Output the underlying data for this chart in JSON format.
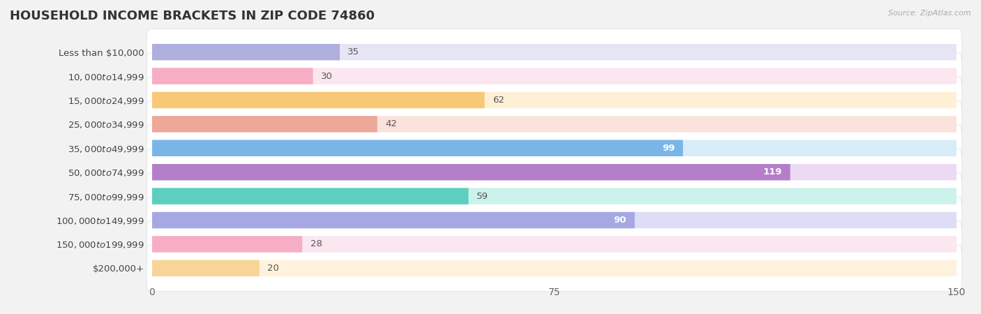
{
  "title": "HOUSEHOLD INCOME BRACKETS IN ZIP CODE 74860",
  "source": "Source: ZipAtlas.com",
  "categories": [
    "Less than $10,000",
    "$10,000 to $14,999",
    "$15,000 to $24,999",
    "$25,000 to $34,999",
    "$35,000 to $49,999",
    "$50,000 to $74,999",
    "$75,000 to $99,999",
    "$100,000 to $149,999",
    "$150,000 to $199,999",
    "$200,000+"
  ],
  "values": [
    35,
    30,
    62,
    42,
    99,
    119,
    59,
    90,
    28,
    20
  ],
  "bar_colors": [
    "#b0aedd",
    "#f7adc3",
    "#f8c876",
    "#eda898",
    "#7ab5e8",
    "#b57ec8",
    "#5dcfbf",
    "#a5a8e3",
    "#f7adc3",
    "#f8d499"
  ],
  "bar_bg_colors": [
    "#e6e5f5",
    "#fce6f0",
    "#fef0d5",
    "#fbe2dc",
    "#d8ecf8",
    "#ecdaf5",
    "#ccf2ec",
    "#ddddf8",
    "#fce6f0",
    "#fef2dc"
  ],
  "label_colors_inside": [
    false,
    false,
    false,
    false,
    true,
    true,
    false,
    true,
    false,
    false
  ],
  "xlim": [
    0,
    150
  ],
  "xticks": [
    0,
    75,
    150
  ],
  "bg_color": "#f2f2f2",
  "title_fontsize": 13,
  "label_fontsize": 9.5,
  "value_fontsize": 9.5
}
